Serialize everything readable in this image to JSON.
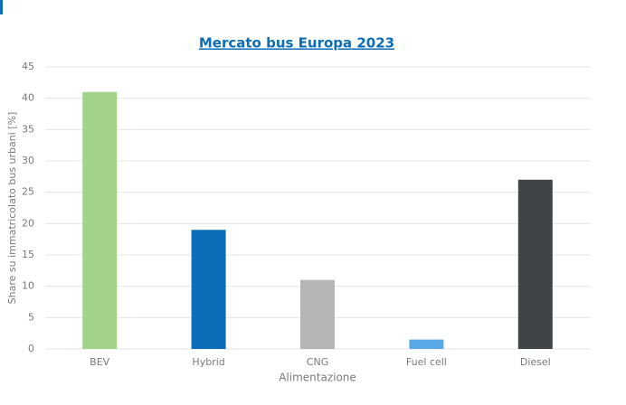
{
  "chart_data": {
    "type": "bar",
    "title": "Mercato bus Europa 2023",
    "x_label": "Alimentazione",
    "y_label": "Share su immatricolato bus urbani [%]",
    "categories": [
      "BEV",
      "Hybrid",
      "CNG",
      "Fuel cell",
      "Diesel"
    ],
    "values": [
      41,
      19,
      11,
      1.5,
      27
    ],
    "colors": [
      "#a3d38a",
      "#0a6eb8",
      "#b5b5b6",
      "#5aa9e6",
      "#3f4447"
    ],
    "ylim": [
      0,
      45
    ],
    "yticks": [
      0,
      5,
      10,
      15,
      20,
      25,
      30,
      35,
      40,
      45
    ],
    "grid": true
  }
}
